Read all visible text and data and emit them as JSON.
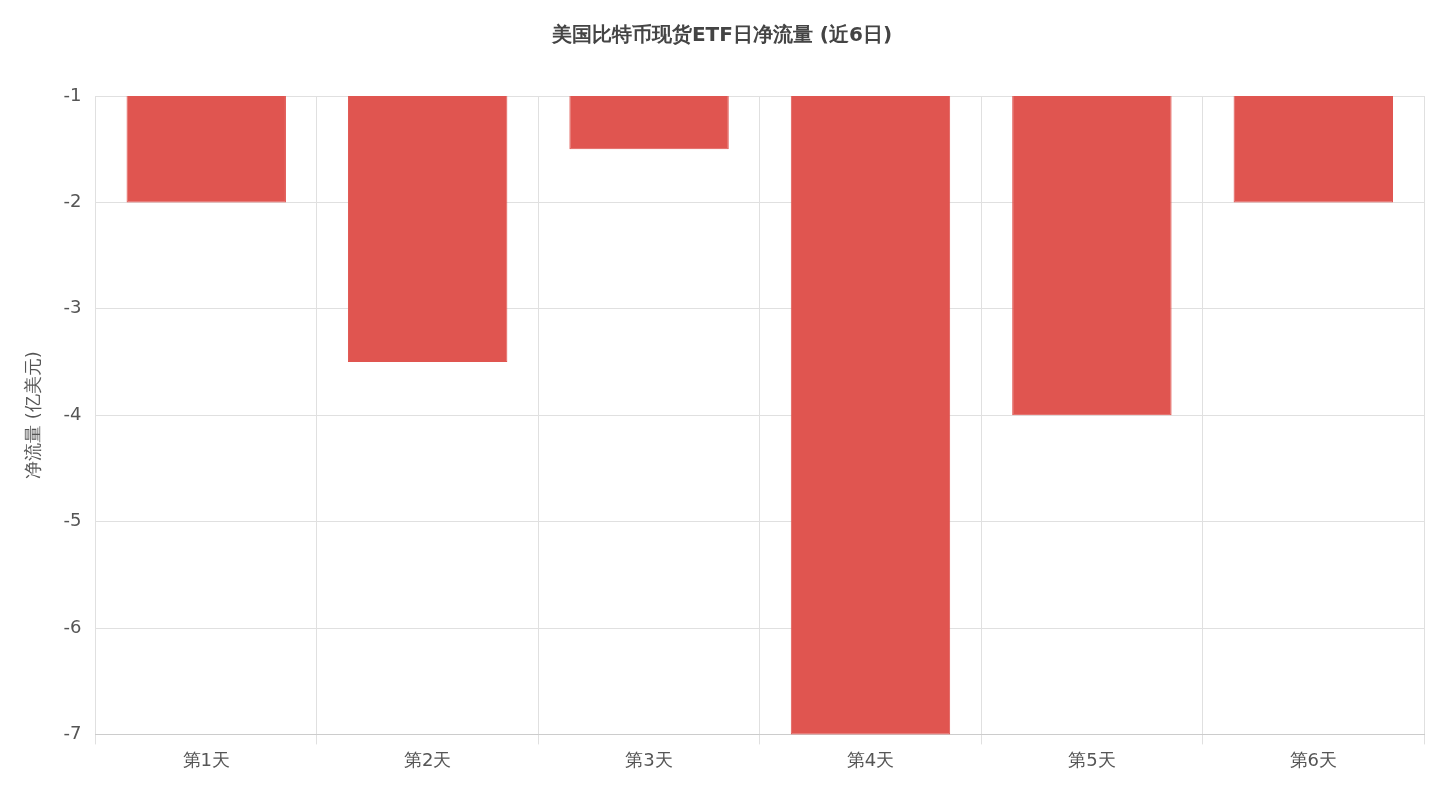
{
  "chart_data": {
    "type": "bar",
    "title": "美国比特币现货ETF日净流量 (近6日)",
    "ylabel": "净流量 (亿美元)",
    "categories": [
      "第1天",
      "第2天",
      "第3天",
      "第4天",
      "第5天",
      "第6天"
    ],
    "values": [
      -2,
      -3.5,
      -1.5,
      -7,
      -4,
      -2
    ],
    "color": "#e05550",
    "ylim": [
      -7,
      -1
    ],
    "yticks": [
      -7,
      -6,
      -5,
      -4,
      -3,
      -2,
      -1
    ],
    "grid": true,
    "legend": false
  }
}
